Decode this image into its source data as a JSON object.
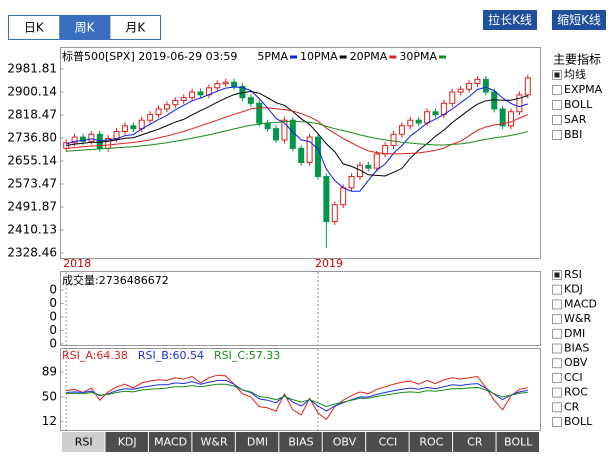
{
  "period_tabs": {
    "items": [
      "日K",
      "周K",
      "月K"
    ],
    "selected_index": 1
  },
  "buttons": [
    "拉长K线",
    "缩短K线"
  ],
  "main_indicators": {
    "title": "主要指标",
    "items": [
      {
        "label": "均线",
        "checked": true
      },
      {
        "label": "EXPMA",
        "checked": false
      },
      {
        "label": "BOLL",
        "checked": false
      },
      {
        "label": "SAR",
        "checked": false
      },
      {
        "label": "BBI",
        "checked": false
      }
    ]
  },
  "sub_indicators": {
    "items": [
      {
        "label": "RSI",
        "checked": true
      },
      {
        "label": "KDJ",
        "checked": false
      },
      {
        "label": "MACD",
        "checked": false
      },
      {
        "label": "W&R",
        "checked": false
      },
      {
        "label": "DMI",
        "checked": false
      },
      {
        "label": "BIAS",
        "checked": false
      },
      {
        "label": "OBV",
        "checked": false
      },
      {
        "label": "CCI",
        "checked": false
      },
      {
        "label": "ROC",
        "checked": false
      },
      {
        "label": "CR",
        "checked": false
      },
      {
        "label": "BOLL",
        "checked": false
      }
    ]
  },
  "indicator_tabs": {
    "items": [
      "RSI",
      "KDJ",
      "MACD",
      "W&R",
      "DMI",
      "BIAS",
      "OBV",
      "CCI",
      "ROC",
      "CR",
      "BOLL"
    ],
    "selected_index": 0
  },
  "chart_data": [
    {
      "type": "candlestick",
      "title": "标普500[SPX] 2019-06-29 03:59",
      "categories": [
        "2018",
        null,
        null,
        null,
        null,
        null,
        null,
        null,
        null,
        null,
        null,
        null,
        null,
        null,
        null,
        null,
        null,
        null,
        null,
        null,
        null,
        null,
        null,
        null,
        null,
        null,
        null,
        null,
        null,
        null,
        "2019",
        null,
        null,
        null,
        null,
        null,
        null,
        null,
        null,
        null,
        null,
        null,
        null,
        null,
        null,
        null,
        null,
        null,
        null,
        null,
        null,
        null,
        null,
        null,
        null,
        null
      ],
      "open": [
        2700,
        2720,
        2740,
        2725,
        2750,
        2700,
        2735,
        2760,
        2780,
        2770,
        2800,
        2820,
        2840,
        2855,
        2870,
        2880,
        2900,
        2890,
        2915,
        2930,
        2935,
        2920,
        2880,
        2860,
        2790,
        2770,
        2730,
        2800,
        2700,
        2650,
        2740,
        2600,
        2440,
        2500,
        2560,
        2600,
        2640,
        2630,
        2680,
        2710,
        2750,
        2780,
        2800,
        2790,
        2830,
        2820,
        2860,
        2900,
        2910,
        2930,
        2945,
        2900,
        2840,
        2780,
        2830,
        2890
      ],
      "high": [
        2732,
        2752,
        2752,
        2762,
        2762,
        2747,
        2772,
        2792,
        2792,
        2812,
        2832,
        2852,
        2867,
        2882,
        2892,
        2912,
        2912,
        2927,
        2942,
        2947,
        2947,
        2932,
        2892,
        2872,
        2802,
        2782,
        2812,
        2812,
        2712,
        2752,
        2752,
        2612,
        2512,
        2572,
        2612,
        2652,
        2652,
        2692,
        2722,
        2762,
        2792,
        2812,
        2812,
        2842,
        2842,
        2872,
        2912,
        2922,
        2942,
        2957,
        2957,
        2912,
        2852,
        2842,
        2902,
        2962
      ],
      "low": [
        2688,
        2708,
        2713,
        2713,
        2688,
        2688,
        2723,
        2748,
        2758,
        2758,
        2788,
        2808,
        2828,
        2843,
        2858,
        2868,
        2878,
        2878,
        2903,
        2918,
        2908,
        2868,
        2848,
        2778,
        2758,
        2718,
        2718,
        2688,
        2638,
        2638,
        2588,
        2346,
        2428,
        2488,
        2548,
        2588,
        2618,
        2618,
        2668,
        2698,
        2738,
        2768,
        2778,
        2778,
        2808,
        2808,
        2848,
        2888,
        2898,
        2918,
        2888,
        2828,
        2768,
        2768,
        2818,
        2878
      ],
      "close": [
        2720,
        2740,
        2725,
        2750,
        2700,
        2735,
        2760,
        2780,
        2770,
        2800,
        2820,
        2840,
        2855,
        2870,
        2880,
        2900,
        2890,
        2915,
        2930,
        2935,
        2920,
        2880,
        2860,
        2790,
        2770,
        2730,
        2800,
        2700,
        2650,
        2740,
        2600,
        2440,
        2500,
        2560,
        2600,
        2640,
        2630,
        2680,
        2710,
        2750,
        2780,
        2800,
        2790,
        2830,
        2820,
        2860,
        2900,
        2910,
        2930,
        2945,
        2900,
        2840,
        2780,
        2830,
        2890,
        2950
      ],
      "up_color": "#e0201b",
      "down_color": "#00964b",
      "series": [
        {
          "name": "5PMA",
          "color": "#0a1ee6",
          "values": [
            2715,
            2725,
            2728,
            2734,
            2727,
            2730,
            2734,
            2745,
            2749,
            2769,
            2786,
            2802,
            2817,
            2837,
            2853,
            2869,
            2879,
            2891,
            2903,
            2914,
            2918,
            2916,
            2905,
            2877,
            2844,
            2806,
            2790,
            2758,
            2730,
            2724,
            2698,
            2626,
            2586,
            2560,
            2548,
            2548,
            2586,
            2622,
            2644,
            2682,
            2710,
            2744,
            2766,
            2790,
            2804,
            2820,
            2840,
            2862,
            2884,
            2909,
            2917,
            2905,
            2879,
            2859,
            2848,
            2858
          ]
        },
        {
          "name": "10PMA",
          "color": "#000000",
          "values": [
            2710,
            2715,
            2718,
            2722,
            2722,
            2725,
            2730,
            2736,
            2738,
            2748,
            2758,
            2768,
            2781,
            2793,
            2803,
            2819,
            2834,
            2848,
            2864,
            2878,
            2891,
            2898,
            2902,
            2896,
            2880,
            2862,
            2853,
            2831,
            2805,
            2785,
            2752,
            2716,
            2688,
            2645,
            2636,
            2623,
            2606,
            2604,
            2602,
            2615,
            2629,
            2665,
            2694,
            2717,
            2743,
            2765,
            2792,
            2814,
            2837,
            2857,
            2869,
            2873,
            2871,
            2871,
            2878,
            2887
          ]
        },
        {
          "name": "20PMA",
          "color": "#e02020",
          "values": [
            2700,
            2703,
            2706,
            2708,
            2710,
            2712,
            2715,
            2718,
            2721,
            2725,
            2730,
            2737,
            2744,
            2752,
            2760,
            2770,
            2780,
            2790,
            2800,
            2811,
            2821,
            2830,
            2840,
            2844,
            2844,
            2841,
            2838,
            2833,
            2823,
            2812,
            2796,
            2772,
            2753,
            2735,
            2719,
            2704,
            2691,
            2685,
            2681,
            2681,
            2681,
            2682,
            2684,
            2688,
            2693,
            2701,
            2715,
            2725,
            2745,
            2764,
            2776,
            2783,
            2787,
            2794,
            2808,
            2820
          ]
        },
        {
          "name": "30PMA",
          "color": "#1a8a1a",
          "values": [
            2690,
            2692,
            2694,
            2696,
            2698,
            2700,
            2702,
            2704,
            2706,
            2709,
            2712,
            2716,
            2720,
            2725,
            2730,
            2736,
            2742,
            2748,
            2755,
            2762,
            2769,
            2776,
            2782,
            2786,
            2790,
            2792,
            2795,
            2796,
            2795,
            2793,
            2788,
            2778,
            2770,
            2763,
            2756,
            2748,
            2741,
            2735,
            2730,
            2726,
            2722,
            2719,
            2716,
            2714,
            2712,
            2712,
            2714,
            2716,
            2720,
            2726,
            2732,
            2737,
            2741,
            2746,
            2752,
            2760
          ]
        }
      ],
      "ylim": [
        2310.7,
        3006.7
      ],
      "yticks": [
        2981.81,
        2900.14,
        2818.47,
        {
          "value": 2736.8,
          "label": "2736.80"
        },
        2655.14,
        2573.47,
        2491.87,
        2410.13,
        2328.46
      ]
    },
    {
      "type": "bar",
      "title": "成交量:2736486672",
      "ylim": [
        0,
        0.5
      ],
      "yticks": [
        {
          "value": 0.4,
          "label": "0"
        },
        {
          "value": 0.3,
          "label": "0"
        },
        {
          "value": 0.2,
          "label": "0"
        },
        {
          "value": 0.1,
          "label": "0"
        },
        0
      ]
    },
    {
      "type": "line",
      "series": [
        {
          "name": "RSI_A:64.38",
          "color": "#e0201b",
          "values": [
            60,
            62,
            57,
            64,
            45,
            58,
            66,
            70,
            64,
            72,
            75,
            77,
            76,
            80,
            78,
            82,
            72,
            80,
            84,
            83,
            70,
            55,
            50,
            35,
            33,
            28,
            55,
            30,
            22,
            48,
            25,
            15,
            35,
            45,
            52,
            58,
            55,
            62,
            66,
            70,
            73,
            75,
            70,
            76,
            71,
            77,
            80,
            78,
            80,
            82,
            65,
            45,
            30,
            52,
            62,
            64.38
          ]
        },
        {
          "name": "RSI_B:60.54",
          "color": "#1a2ee6",
          "values": [
            57,
            58,
            57,
            59,
            52,
            55,
            60,
            63,
            62,
            65,
            67,
            69,
            69,
            72,
            71,
            74,
            70,
            73,
            76,
            76,
            70,
            61,
            57,
            47,
            45,
            41,
            52,
            42,
            36,
            46,
            36,
            28,
            36,
            41,
            46,
            50,
            50,
            54,
            57,
            60,
            62,
            64,
            62,
            65,
            63,
            66,
            69,
            68,
            70,
            71,
            64,
            54,
            46,
            53,
            58,
            60.54
          ]
        },
        {
          "name": "RSI_C:57.33",
          "color": "#1a8a1a",
          "values": [
            55,
            56,
            55,
            57,
            53,
            54,
            57,
            59,
            58,
            61,
            62,
            63,
            64,
            66,
            66,
            68,
            66,
            68,
            70,
            70,
            67,
            61,
            58,
            51,
            49,
            46,
            51,
            46,
            42,
            46,
            41,
            35,
            39,
            42,
            45,
            48,
            48,
            51,
            53,
            55,
            57,
            58,
            57,
            60,
            59,
            61,
            63,
            63,
            64,
            65,
            61,
            55,
            50,
            53,
            56,
            57.33
          ]
        }
      ],
      "ylim": [
        0,
        100
      ],
      "yticks": [
        89,
        50,
        12
      ]
    }
  ]
}
